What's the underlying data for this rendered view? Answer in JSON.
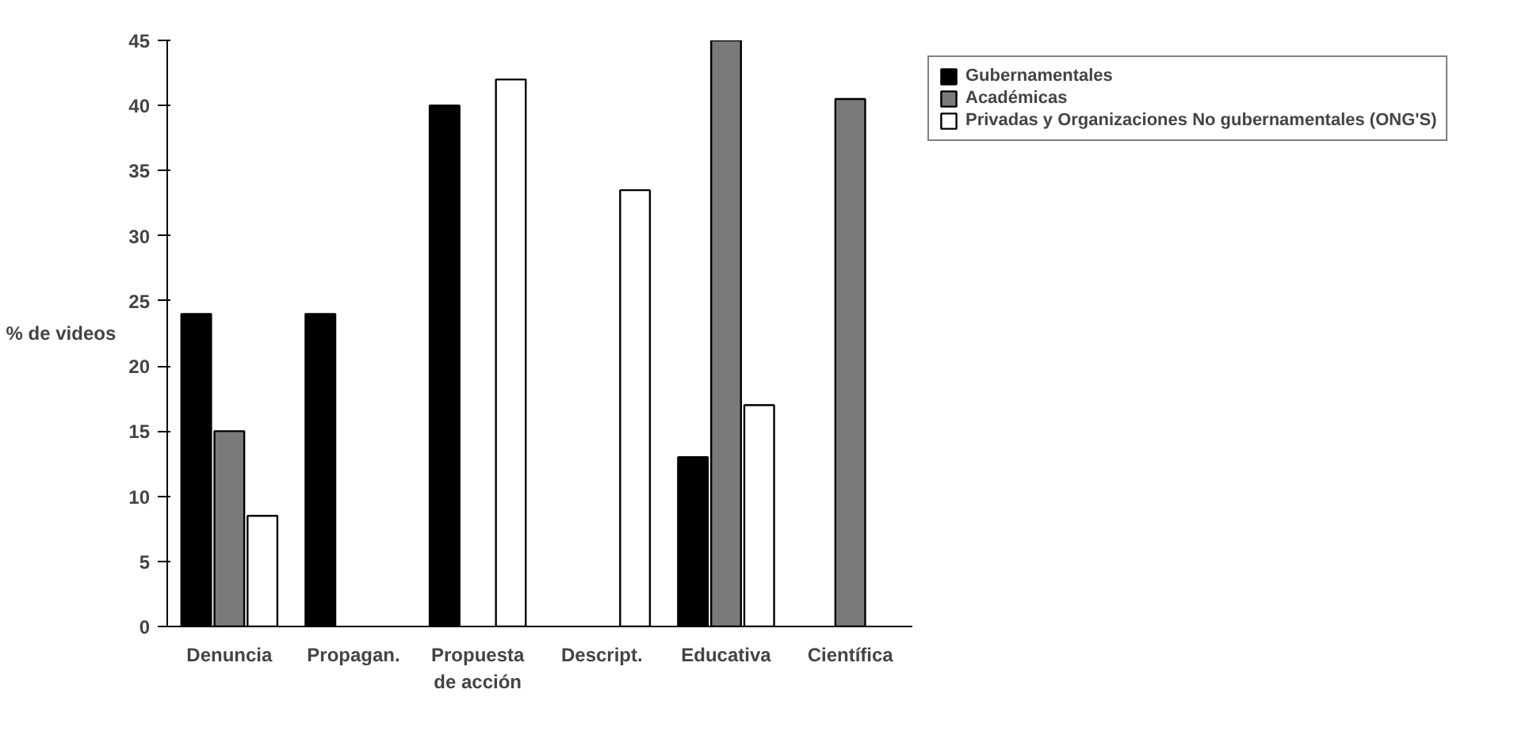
{
  "chart_data": {
    "type": "bar",
    "ylabel": "% de videos",
    "categories": [
      "Denuncia",
      "Propagan.",
      "Propuesta\nde acción",
      "Descript.",
      "Educativa",
      "Científica"
    ],
    "series": [
      {
        "name": "Gubernamentales",
        "color": "#000000",
        "values": [
          24,
          24,
          40,
          0,
          13,
          0
        ]
      },
      {
        "name": "Académicas",
        "color": "#7a7a7a",
        "values": [
          15,
          0,
          0,
          0,
          45,
          40.5
        ]
      },
      {
        "name": "Privadas y Organizaciones No gubernamentales (ONG'S)",
        "color": "#ffffff",
        "values": [
          8.5,
          0,
          42,
          33.5,
          17,
          0
        ]
      }
    ],
    "ylim": [
      0,
      45
    ],
    "yticks": [
      0,
      5,
      10,
      15,
      20,
      25,
      30,
      35,
      40,
      45
    ],
    "grid": false,
    "legend": "top right"
  }
}
